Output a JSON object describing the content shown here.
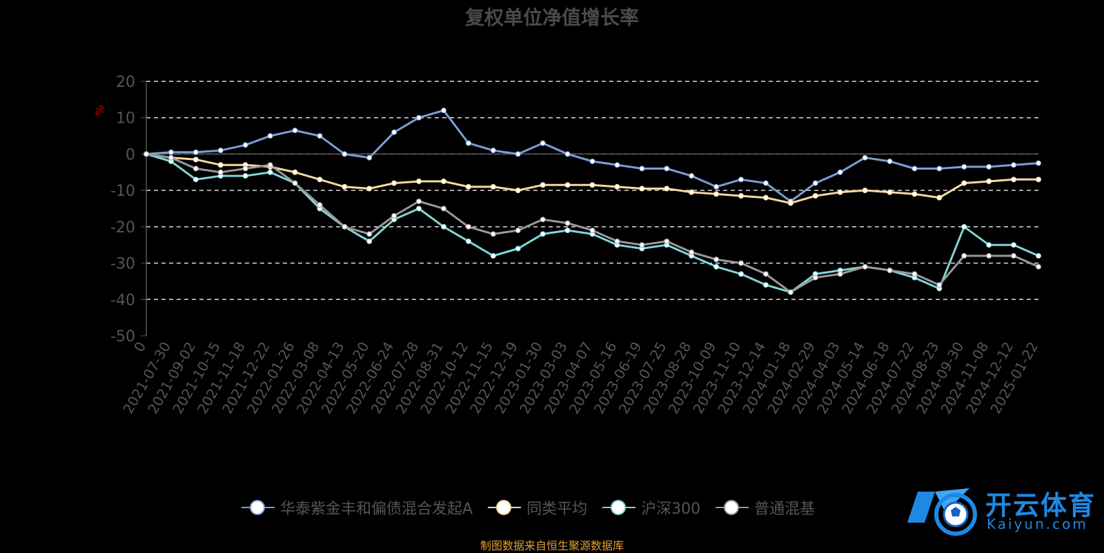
{
  "chart_data": {
    "type": "line",
    "title": "复权单位净值增长率",
    "ylabel": "%",
    "ylim": [
      -50,
      20
    ],
    "yticks": [
      20,
      10,
      0,
      -10,
      -20,
      -30,
      -40,
      -50
    ],
    "grid": true,
    "legend_position": "bottom",
    "categories": [
      "0",
      "2021-07-30",
      "2021-09-02",
      "2021-10-15",
      "2021-11-18",
      "2021-12-22",
      "2022-01-26",
      "2022-03-08",
      "2022-04-13",
      "2022-05-20",
      "2022-06-24",
      "2022-07-28",
      "2022-08-31",
      "2022-10-12",
      "2022-11-15",
      "2022-12-19",
      "2023-01-30",
      "2023-03-03",
      "2023-04-07",
      "2023-05-16",
      "2023-06-19",
      "2023-07-25",
      "2023-08-28",
      "2023-10-09",
      "2023-11-10",
      "2023-12-14",
      "2024-01-18",
      "2024-02-29",
      "2024-04-03",
      "2024-05-14",
      "2024-06-18",
      "2024-07-22",
      "2024-08-23",
      "2024-09-30",
      "2024-11-08",
      "2024-12-12",
      "2025-01-22"
    ],
    "series": [
      {
        "name": "华泰紫金丰和偏债混合发起A",
        "color": "#7b9fd6",
        "values": [
          0,
          0.5,
          0.5,
          1,
          2.5,
          5,
          6.5,
          5,
          0,
          -1,
          6,
          10,
          12,
          3,
          1,
          0,
          3,
          0,
          -2,
          -3,
          -4,
          -4,
          -6,
          -9,
          -7,
          -8,
          -13,
          -8,
          -5,
          -1,
          -2,
          -4,
          -4,
          -3.5,
          -3.5,
          -3,
          -2.5
        ]
      },
      {
        "name": "同类平均",
        "color": "#f5d9a0",
        "values": [
          0,
          -1,
          -1.5,
          -3,
          -3,
          -3.5,
          -5,
          -7,
          -9,
          -9.5,
          -8,
          -7.5,
          -7.5,
          -9,
          -9,
          -10,
          -8.5,
          -8.5,
          -8.5,
          -9,
          -9.5,
          -9.5,
          -10.5,
          -11,
          -11.5,
          -12,
          -13.5,
          -11.5,
          -10.5,
          -10,
          -10.5,
          -11,
          -12,
          -8,
          -7.5,
          -7,
          -7
        ]
      },
      {
        "name": "沪深300",
        "color": "#7fd7d7",
        "values": [
          0,
          -2,
          -7,
          -6,
          -6,
          -5,
          -8,
          -15,
          -20,
          -24,
          -18,
          -15,
          -20,
          -24,
          -28,
          -26,
          -22,
          -21,
          -22,
          -25,
          -26,
          -25,
          -28,
          -31,
          -33,
          -36,
          -38,
          -33,
          -32,
          -31,
          -32,
          -34,
          -37,
          -20,
          -25,
          -25,
          -28
        ]
      },
      {
        "name": "普通混基",
        "color": "#9a9a9a",
        "values": [
          0,
          -1,
          -4,
          -5,
          -4,
          -3,
          -8,
          -14,
          -20,
          -22,
          -17,
          -13,
          -15,
          -20,
          -22,
          -21,
          -18,
          -19,
          -21,
          -24,
          -25,
          -24,
          -27,
          -29,
          -30,
          -33,
          -38,
          -34,
          -33,
          -31,
          -32,
          -33,
          -36,
          -28,
          -28,
          -28,
          -31
        ]
      }
    ],
    "source_note": "制图数据来自恒生聚源数据库"
  },
  "logo": {
    "text": "开云体育",
    "sub": "Kaiyun.com"
  }
}
